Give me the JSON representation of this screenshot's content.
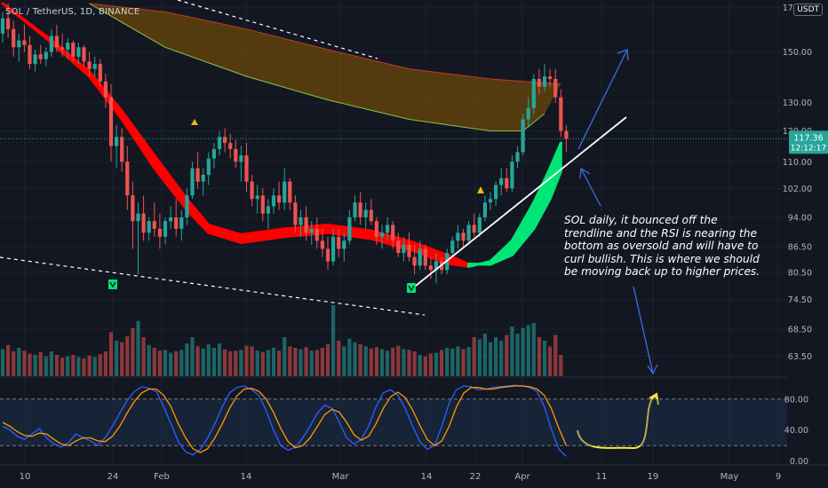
{
  "header": {
    "symbol": "SOL / TetherUS, 1D, BINANCE",
    "currency": "USDT"
  },
  "annotation": "SOL daily, it bounced off the trendline and the RSI is nearing the bottom as oversold and will have to curl bullish. This is where we should be moving back up to higher prices.",
  "colors": {
    "background": "#131722",
    "up": "#26a69a",
    "down": "#ef5350",
    "ma_bear": "#ff0000",
    "ma_bull": "#00e676",
    "cloud": "#8b5a00",
    "stoch_k": "#2962ff",
    "stoch_d": "#ff9800",
    "note_yellow": "#ffeb3b",
    "arrow_blue": "#3a6fe0"
  },
  "chart_data": {
    "type": "candlestick",
    "price_axis": {
      "ticks": [
        "170.00",
        "150.00",
        "130.00",
        "120.00",
        "110.00",
        "102.00",
        "94.00",
        "86.50",
        "80.50",
        "74.50",
        "68.50",
        "63.50"
      ],
      "scale": "log",
      "ylim": [
        60,
        172
      ]
    },
    "last_price": {
      "value": "117.36",
      "countdown": "12:12:17"
    },
    "osc_axis": {
      "ticks": [
        "80.00",
        "40.00",
        "0.00"
      ],
      "ylim": [
        -5,
        105
      ],
      "bands": [
        80,
        20
      ]
    },
    "x_ticks": [
      "10",
      "24",
      "Feb",
      "14",
      "Mar",
      "14",
      "22",
      "Apr",
      "11",
      "19",
      "May",
      "9"
    ],
    "candles": [
      {
        "o": 158,
        "h": 168,
        "l": 154,
        "c": 165
      },
      {
        "o": 165,
        "h": 172,
        "l": 156,
        "c": 160
      },
      {
        "o": 160,
        "h": 164,
        "l": 148,
        "c": 152
      },
      {
        "o": 152,
        "h": 158,
        "l": 146,
        "c": 155
      },
      {
        "o": 155,
        "h": 162,
        "l": 150,
        "c": 153
      },
      {
        "o": 153,
        "h": 157,
        "l": 143,
        "c": 145
      },
      {
        "o": 145,
        "h": 151,
        "l": 142,
        "c": 149
      },
      {
        "o": 149,
        "h": 153,
        "l": 145,
        "c": 147
      },
      {
        "o": 147,
        "h": 152,
        "l": 144,
        "c": 150
      },
      {
        "o": 150,
        "h": 160,
        "l": 148,
        "c": 157
      },
      {
        "o": 157,
        "h": 162,
        "l": 150,
        "c": 152
      },
      {
        "o": 152,
        "h": 158,
        "l": 148,
        "c": 151
      },
      {
        "o": 151,
        "h": 156,
        "l": 147,
        "c": 154
      },
      {
        "o": 154,
        "h": 155,
        "l": 146,
        "c": 148
      },
      {
        "o": 148,
        "h": 154,
        "l": 145,
        "c": 152
      },
      {
        "o": 152,
        "h": 153,
        "l": 144,
        "c": 146
      },
      {
        "o": 146,
        "h": 150,
        "l": 140,
        "c": 143
      },
      {
        "o": 143,
        "h": 148,
        "l": 140,
        "c": 145
      },
      {
        "o": 145,
        "h": 147,
        "l": 136,
        "c": 138
      },
      {
        "o": 138,
        "h": 141,
        "l": 128,
        "c": 132
      },
      {
        "o": 132,
        "h": 137,
        "l": 110,
        "c": 115
      },
      {
        "o": 115,
        "h": 122,
        "l": 108,
        "c": 118
      },
      {
        "o": 118,
        "h": 121,
        "l": 107,
        "c": 110
      },
      {
        "o": 110,
        "h": 115,
        "l": 96,
        "c": 100
      },
      {
        "o": 100,
        "h": 104,
        "l": 86,
        "c": 93
      },
      {
        "o": 93,
        "h": 98,
        "l": 80,
        "c": 95
      },
      {
        "o": 95,
        "h": 100,
        "l": 88,
        "c": 90
      },
      {
        "o": 90,
        "h": 94,
        "l": 88,
        "c": 93
      },
      {
        "o": 93,
        "h": 98,
        "l": 89,
        "c": 91
      },
      {
        "o": 91,
        "h": 95,
        "l": 86,
        "c": 89
      },
      {
        "o": 89,
        "h": 94,
        "l": 87,
        "c": 93
      },
      {
        "o": 93,
        "h": 97,
        "l": 91,
        "c": 94
      },
      {
        "o": 94,
        "h": 99,
        "l": 89,
        "c": 91
      },
      {
        "o": 91,
        "h": 96,
        "l": 88,
        "c": 94
      },
      {
        "o": 94,
        "h": 102,
        "l": 92,
        "c": 100
      },
      {
        "o": 100,
        "h": 110,
        "l": 99,
        "c": 108
      },
      {
        "o": 108,
        "h": 113,
        "l": 102,
        "c": 104
      },
      {
        "o": 104,
        "h": 108,
        "l": 100,
        "c": 106
      },
      {
        "o": 106,
        "h": 113,
        "l": 103,
        "c": 111
      },
      {
        "o": 111,
        "h": 116,
        "l": 108,
        "c": 114
      },
      {
        "o": 114,
        "h": 120,
        "l": 112,
        "c": 118
      },
      {
        "o": 118,
        "h": 121,
        "l": 113,
        "c": 116
      },
      {
        "o": 116,
        "h": 119,
        "l": 111,
        "c": 114
      },
      {
        "o": 114,
        "h": 117,
        "l": 108,
        "c": 110
      },
      {
        "o": 110,
        "h": 115,
        "l": 104,
        "c": 112
      },
      {
        "o": 112,
        "h": 116,
        "l": 101,
        "c": 104
      },
      {
        "o": 104,
        "h": 106,
        "l": 97,
        "c": 99
      },
      {
        "o": 99,
        "h": 103,
        "l": 95,
        "c": 100
      },
      {
        "o": 100,
        "h": 102,
        "l": 93,
        "c": 95
      },
      {
        "o": 95,
        "h": 99,
        "l": 91,
        "c": 97
      },
      {
        "o": 97,
        "h": 102,
        "l": 95,
        "c": 100
      },
      {
        "o": 100,
        "h": 104,
        "l": 96,
        "c": 98
      },
      {
        "o": 98,
        "h": 108,
        "l": 96,
        "c": 104
      },
      {
        "o": 104,
        "h": 105,
        "l": 96,
        "c": 98
      },
      {
        "o": 98,
        "h": 100,
        "l": 90,
        "c": 92
      },
      {
        "o": 92,
        "h": 96,
        "l": 89,
        "c": 94
      },
      {
        "o": 94,
        "h": 97,
        "l": 88,
        "c": 90
      },
      {
        "o": 90,
        "h": 93,
        "l": 87,
        "c": 91
      },
      {
        "o": 91,
        "h": 94,
        "l": 86,
        "c": 88
      },
      {
        "o": 88,
        "h": 91,
        "l": 84,
        "c": 86
      },
      {
        "o": 86,
        "h": 89,
        "l": 81,
        "c": 83
      },
      {
        "o": 83,
        "h": 91,
        "l": 82,
        "c": 89
      },
      {
        "o": 89,
        "h": 91,
        "l": 84,
        "c": 86
      },
      {
        "o": 86,
        "h": 90,
        "l": 83,
        "c": 88
      },
      {
        "o": 88,
        "h": 96,
        "l": 87,
        "c": 94
      },
      {
        "o": 94,
        "h": 100,
        "l": 93,
        "c": 98
      },
      {
        "o": 98,
        "h": 101,
        "l": 92,
        "c": 94
      },
      {
        "o": 94,
        "h": 98,
        "l": 91,
        "c": 96
      },
      {
        "o": 96,
        "h": 99,
        "l": 92,
        "c": 93
      },
      {
        "o": 93,
        "h": 94,
        "l": 87,
        "c": 89
      },
      {
        "o": 89,
        "h": 92,
        "l": 86,
        "c": 90
      },
      {
        "o": 90,
        "h": 94,
        "l": 88,
        "c": 92
      },
      {
        "o": 92,
        "h": 93,
        "l": 86,
        "c": 88
      },
      {
        "o": 88,
        "h": 90,
        "l": 84,
        "c": 85
      },
      {
        "o": 85,
        "h": 89,
        "l": 83,
        "c": 87
      },
      {
        "o": 87,
        "h": 90,
        "l": 83,
        "c": 84
      },
      {
        "o": 84,
        "h": 87,
        "l": 80,
        "c": 82
      },
      {
        "o": 82,
        "h": 88,
        "l": 81,
        "c": 86
      },
      {
        "o": 86,
        "h": 87,
        "l": 81,
        "c": 82
      },
      {
        "o": 82,
        "h": 84,
        "l": 79,
        "c": 81
      },
      {
        "o": 81,
        "h": 85,
        "l": 78,
        "c": 83
      },
      {
        "o": 83,
        "h": 84,
        "l": 80,
        "c": 81
      },
      {
        "o": 81,
        "h": 86,
        "l": 80,
        "c": 85
      },
      {
        "o": 85,
        "h": 89,
        "l": 84,
        "c": 88
      },
      {
        "o": 88,
        "h": 92,
        "l": 86,
        "c": 90
      },
      {
        "o": 90,
        "h": 91,
        "l": 86,
        "c": 88
      },
      {
        "o": 88,
        "h": 93,
        "l": 87,
        "c": 92
      },
      {
        "o": 92,
        "h": 95,
        "l": 89,
        "c": 90
      },
      {
        "o": 90,
        "h": 95,
        "l": 89,
        "c": 94
      },
      {
        "o": 94,
        "h": 100,
        "l": 93,
        "c": 98
      },
      {
        "o": 98,
        "h": 101,
        "l": 96,
        "c": 99
      },
      {
        "o": 99,
        "h": 104,
        "l": 97,
        "c": 103
      },
      {
        "o": 103,
        "h": 108,
        "l": 100,
        "c": 105
      },
      {
        "o": 105,
        "h": 108,
        "l": 101,
        "c": 102
      },
      {
        "o": 102,
        "h": 112,
        "l": 101,
        "c": 110
      },
      {
        "o": 110,
        "h": 115,
        "l": 108,
        "c": 113
      },
      {
        "o": 113,
        "h": 126,
        "l": 112,
        "c": 124
      },
      {
        "o": 124,
        "h": 132,
        "l": 121,
        "c": 128
      },
      {
        "o": 128,
        "h": 141,
        "l": 126,
        "c": 139
      },
      {
        "o": 139,
        "h": 143,
        "l": 133,
        "c": 136
      },
      {
        "o": 136,
        "h": 145,
        "l": 134,
        "c": 140
      },
      {
        "o": 140,
        "h": 143,
        "l": 136,
        "c": 139
      },
      {
        "o": 139,
        "h": 143,
        "l": 130,
        "c": 132
      },
      {
        "o": 132,
        "h": 135,
        "l": 118,
        "c": 120
      },
      {
        "o": 120,
        "h": 122,
        "l": 113,
        "c": 117.36
      }
    ],
    "volume": [
      0.38,
      0.44,
      0.35,
      0.4,
      0.36,
      0.32,
      0.3,
      0.34,
      0.28,
      0.35,
      0.3,
      0.26,
      0.28,
      0.3,
      0.27,
      0.25,
      0.29,
      0.27,
      0.31,
      0.35,
      0.62,
      0.5,
      0.48,
      0.56,
      0.68,
      0.78,
      0.55,
      0.44,
      0.4,
      0.36,
      0.37,
      0.33,
      0.35,
      0.37,
      0.46,
      0.55,
      0.42,
      0.39,
      0.45,
      0.4,
      0.46,
      0.38,
      0.35,
      0.36,
      0.37,
      0.43,
      0.42,
      0.36,
      0.34,
      0.37,
      0.4,
      0.36,
      0.55,
      0.42,
      0.4,
      0.38,
      0.41,
      0.36,
      0.37,
      0.4,
      0.45,
      1.0,
      0.5,
      0.42,
      0.53,
      0.48,
      0.45,
      0.42,
      0.39,
      0.41,
      0.38,
      0.36,
      0.4,
      0.43,
      0.38,
      0.37,
      0.35,
      0.3,
      0.28,
      0.32,
      0.33,
      0.37,
      0.4,
      0.39,
      0.42,
      0.38,
      0.41,
      0.55,
      0.52,
      0.6,
      0.48,
      0.55,
      0.5,
      0.58,
      0.7,
      0.6,
      0.68,
      0.72,
      0.75,
      0.55,
      0.5,
      0.42,
      0.58,
      0.3
    ],
    "ma_fast": [
      {
        "x": 0,
        "y": 172
      },
      {
        "x": 8,
        "y": 156
      },
      {
        "x": 16,
        "y": 140
      },
      {
        "x": 22,
        "y": 124
      },
      {
        "x": 28,
        "y": 108
      },
      {
        "x": 34,
        "y": 96
      },
      {
        "x": 38,
        "y": 90
      },
      {
        "x": 44,
        "y": 87.5
      },
      {
        "x": 52,
        "y": 89
      },
      {
        "x": 60,
        "y": 90
      },
      {
        "x": 68,
        "y": 88.5
      },
      {
        "x": 76,
        "y": 85.5
      },
      {
        "x": 82,
        "y": 82.5
      },
      {
        "x": 86,
        "y": 81.8
      },
      {
        "x": 90,
        "y": 83
      },
      {
        "x": 94,
        "y": 88
      },
      {
        "x": 98,
        "y": 98
      },
      {
        "x": 101,
        "y": 108
      },
      {
        "x": 103,
        "y": 116
      }
    ],
    "ma_slow": [
      {
        "x": 0,
        "y": 172
      },
      {
        "x": 8,
        "y": 157
      },
      {
        "x": 16,
        "y": 142
      },
      {
        "x": 22,
        "y": 127
      },
      {
        "x": 28,
        "y": 112
      },
      {
        "x": 34,
        "y": 99
      },
      {
        "x": 38,
        "y": 92
      },
      {
        "x": 44,
        "y": 89.5
      },
      {
        "x": 52,
        "y": 91
      },
      {
        "x": 60,
        "y": 92
      },
      {
        "x": 68,
        "y": 90.5
      },
      {
        "x": 76,
        "y": 87.5
      },
      {
        "x": 82,
        "y": 84.5
      },
      {
        "x": 86,
        "y": 82.4
      },
      {
        "x": 90,
        "y": 82.3
      },
      {
        "x": 94,
        "y": 84.5
      },
      {
        "x": 98,
        "y": 91
      },
      {
        "x": 101,
        "y": 99
      },
      {
        "x": 103,
        "y": 107
      }
    ],
    "cloud_upper": [
      {
        "x": 16,
        "y": 172
      },
      {
        "x": 30,
        "y": 168
      },
      {
        "x": 45,
        "y": 160
      },
      {
        "x": 60,
        "y": 151
      },
      {
        "x": 75,
        "y": 143
      },
      {
        "x": 90,
        "y": 139
      },
      {
        "x": 103,
        "y": 137
      }
    ],
    "cloud_lower": [
      {
        "x": 16,
        "y": 172
      },
      {
        "x": 30,
        "y": 152
      },
      {
        "x": 45,
        "y": 140
      },
      {
        "x": 60,
        "y": 131
      },
      {
        "x": 75,
        "y": 124
      },
      {
        "x": 90,
        "y": 120
      },
      {
        "x": 96,
        "y": 120
      },
      {
        "x": 100,
        "y": 126
      }
    ],
    "stoch_k": [
      45,
      40,
      32,
      28,
      35,
      42,
      30,
      22,
      18,
      24,
      35,
      30,
      26,
      20,
      30,
      45,
      62,
      78,
      90,
      96,
      94,
      90,
      70,
      48,
      25,
      12,
      8,
      15,
      30,
      48,
      70,
      88,
      95,
      97,
      92,
      85,
      65,
      40,
      20,
      14,
      18,
      30,
      45,
      62,
      72,
      68,
      50,
      30,
      22,
      28,
      45,
      70,
      88,
      92,
      85,
      68,
      45,
      25,
      15,
      20,
      45,
      75,
      92,
      97,
      96,
      92,
      93,
      95,
      96,
      97,
      98,
      97,
      95,
      90,
      70,
      40,
      15,
      6
    ],
    "stoch_d": [
      50,
      45,
      38,
      33,
      32,
      36,
      35,
      28,
      22,
      20,
      26,
      30,
      30,
      26,
      25,
      32,
      45,
      62,
      77,
      88,
      93,
      93,
      85,
      70,
      48,
      30,
      16,
      11,
      16,
      30,
      48,
      68,
      84,
      93,
      94,
      90,
      80,
      63,
      42,
      25,
      17,
      20,
      30,
      45,
      60,
      67,
      63,
      50,
      34,
      27,
      32,
      48,
      68,
      83,
      89,
      82,
      66,
      46,
      28,
      20,
      26,
      45,
      70,
      88,
      95,
      95,
      93,
      93,
      95,
      96,
      97,
      97,
      96,
      93,
      85,
      67,
      42,
      20
    ]
  }
}
